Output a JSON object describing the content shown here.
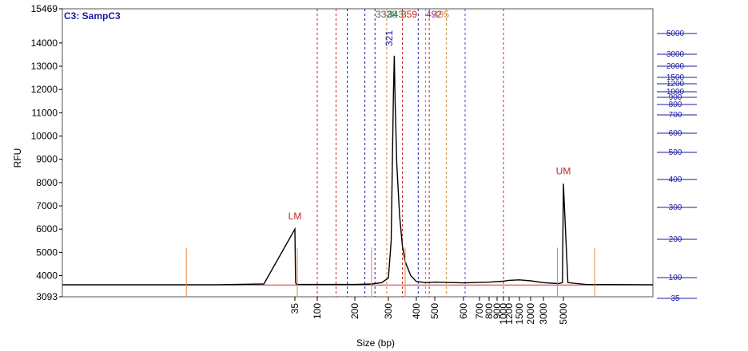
{
  "chart_data": {
    "type": "line",
    "title": "C3: SampC3",
    "xlabel": "Size (bp)",
    "ylabel": "RFU",
    "ylim": [
      3093,
      15469
    ],
    "y_ticks": [
      "3093",
      "4000",
      "5000",
      "6000",
      "7000",
      "8000",
      "9000",
      "10000",
      "11000",
      "12000",
      "13000",
      "14000",
      "15469"
    ],
    "x_ticks": [
      "35",
      "100",
      "200",
      "300",
      "400",
      "500",
      "600",
      "700",
      "800",
      "900",
      "1000",
      "1200",
      "1500",
      "2000",
      "3000",
      "5000"
    ],
    "right_axis_ticks": [
      "5000",
      "3000",
      "2000",
      "1500",
      "1200",
      "1000",
      "900",
      "800",
      "700",
      "600",
      "500",
      "400",
      "300",
      "200",
      "100",
      "35"
    ],
    "markers": [
      {
        "label": "LM",
        "size_bp": 35,
        "rfu": 6000
      },
      {
        "label": "UM",
        "size_bp": 5000,
        "rfu": 7950
      }
    ],
    "peak_labels": [
      "321",
      "332",
      "338",
      "343",
      "359",
      "492",
      "495"
    ],
    "series": [
      {
        "x": [
          20,
          30,
          33,
          35,
          37,
          40,
          100,
          200,
          250,
          280,
          300,
          310,
          318,
          321,
          324,
          330,
          340,
          350,
          360,
          380,
          400,
          450,
          500,
          600,
          800,
          1000,
          1200,
          1500,
          2000,
          3000,
          4500,
          4900,
          5000,
          5100,
          5500,
          7000
        ],
        "y": [
          3610,
          3610,
          3640,
          6000,
          3700,
          3620,
          3620,
          3620,
          3640,
          3700,
          3900,
          5500,
          11800,
          13450,
          11500,
          8800,
          6600,
          5300,
          4600,
          4000,
          3750,
          3700,
          3720,
          3690,
          3720,
          3760,
          3800,
          3820,
          3780,
          3700,
          3660,
          3700,
          7950,
          3700,
          3620,
          3610
        ]
      }
    ],
    "grid": false
  }
}
